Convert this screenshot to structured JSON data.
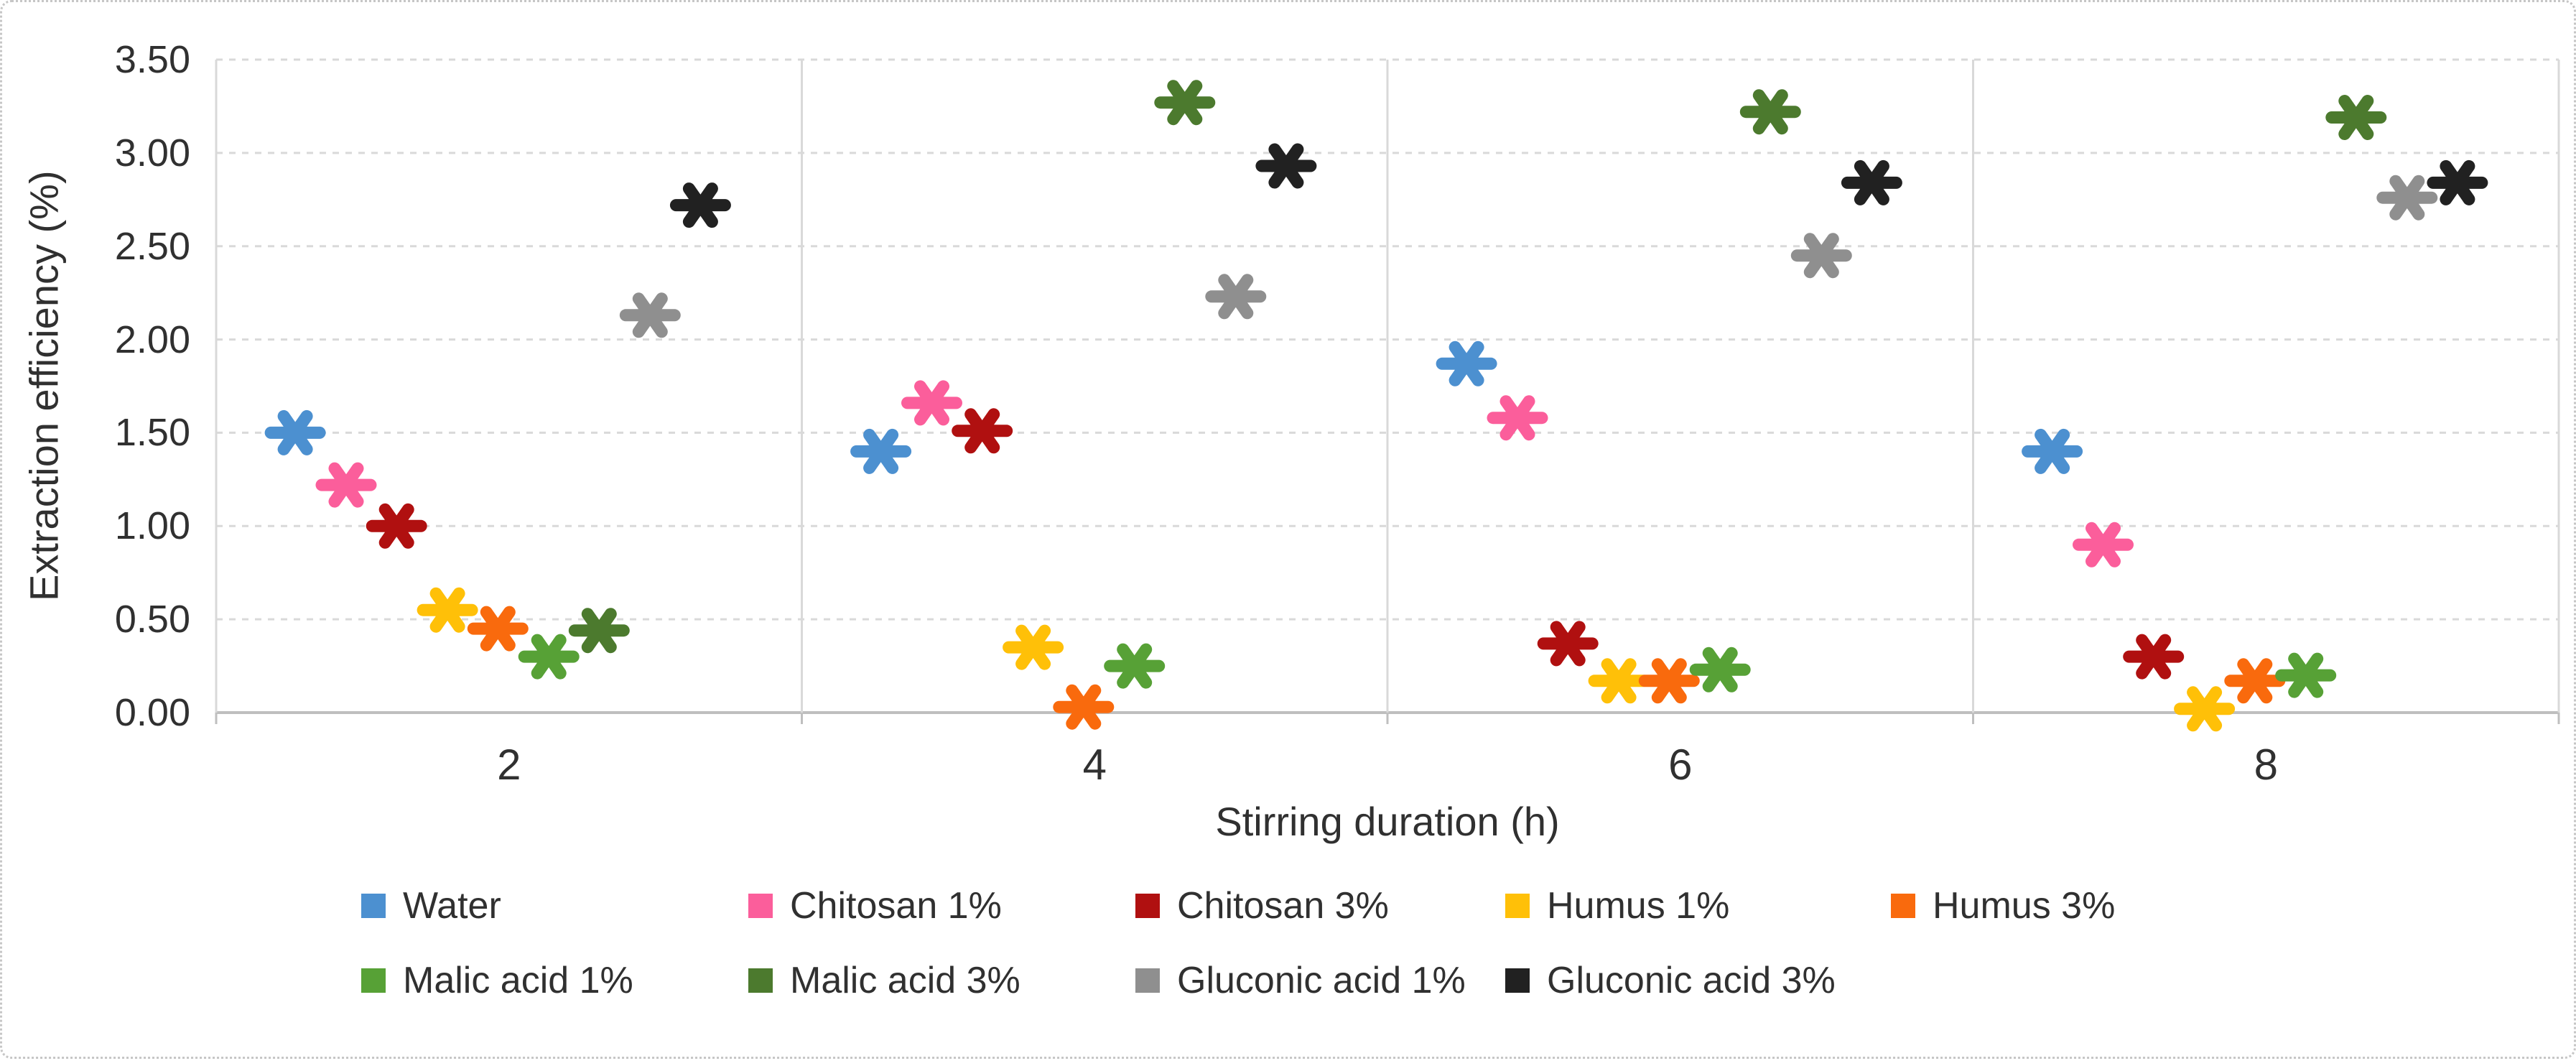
{
  "chart_data": {
    "type": "scatter",
    "title": "",
    "xlabel": "Stirring duration (h)",
    "ylabel": "Extraction efficiency (%)",
    "categories": [
      "2",
      "4",
      "6",
      "8"
    ],
    "ylim": [
      0,
      3.5
    ],
    "y_ticks": [
      "0.00",
      "0.50",
      "1.00",
      "1.50",
      "2.00",
      "2.50",
      "3.00",
      "3.50"
    ],
    "grid": "horizontal dashed gridlines every 0.50; vertical solid dividers between category groups",
    "legend_position": "bottom, two rows",
    "marker": "asterisk-icon (horizontal bar plus X, 6 spokes)",
    "axis_color": "#bfbfbf",
    "gridline_color": "#d9d9d9",
    "series": [
      {
        "name": "Water",
        "color": "#4C90D0",
        "values": [
          1.5,
          1.4,
          1.87,
          1.4
        ]
      },
      {
        "name": "Chitosan 1%",
        "color": "#FB5E9B",
        "values": [
          1.22,
          1.66,
          1.58,
          0.9
        ]
      },
      {
        "name": "Chitosan 3%",
        "color": "#B01010",
        "values": [
          1.0,
          1.51,
          0.37,
          0.3
        ]
      },
      {
        "name": "Humus 1%",
        "color": "#FFC008",
        "values": [
          0.55,
          0.35,
          0.17,
          0.02
        ]
      },
      {
        "name": "Humus 3%",
        "color": "#F96A0D",
        "values": [
          0.45,
          0.03,
          0.17,
          0.17
        ]
      },
      {
        "name": "Malic acid 1%",
        "color": "#57A136",
        "values": [
          0.3,
          0.25,
          0.23,
          0.2
        ]
      },
      {
        "name": "Malic acid 3%",
        "color": "#4C7A2E",
        "values": [
          0.44,
          3.27,
          3.22,
          3.19
        ]
      },
      {
        "name": "Gluconic acid 1%",
        "color": "#8F8F8F",
        "values": [
          2.13,
          2.23,
          2.45,
          2.76
        ]
      },
      {
        "name": "Gluconic acid 3%",
        "color": "#212121",
        "values": [
          2.72,
          2.93,
          2.84,
          2.84
        ]
      }
    ]
  }
}
